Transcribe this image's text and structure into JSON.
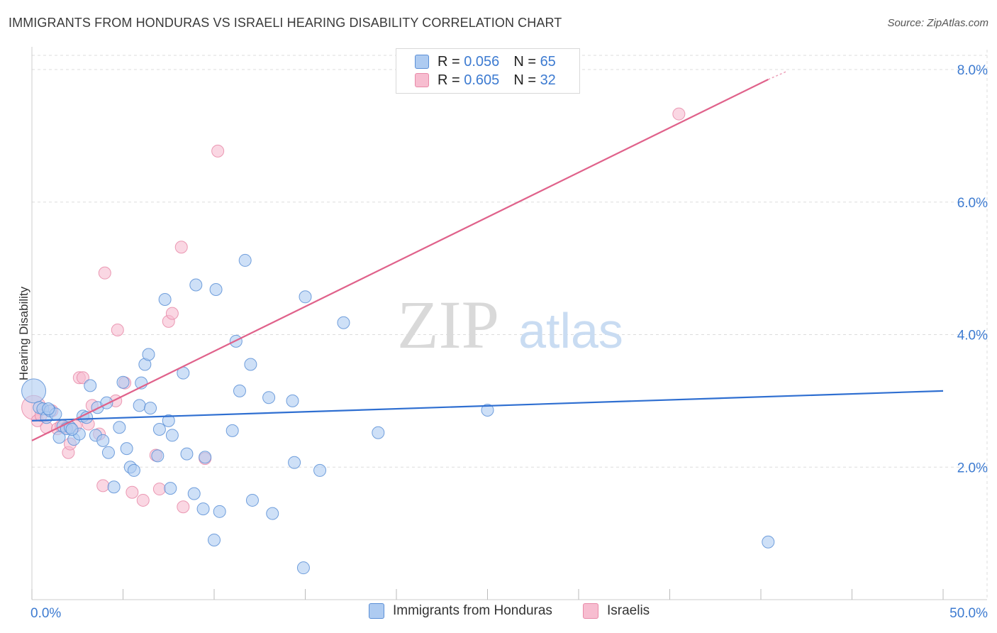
{
  "header": {
    "title": "IMMIGRANTS FROM HONDURAS VS ISRAELI HEARING DISABILITY CORRELATION CHART",
    "source": "Source: ZipAtlas.com"
  },
  "legend": {
    "series": [
      {
        "r_label": "R =",
        "r_value": "0.056",
        "n_label": "N =",
        "n_value": "65"
      },
      {
        "r_label": "R =",
        "r_value": "0.605",
        "n_label": "N =",
        "n_value": "32"
      }
    ]
  },
  "bottom_legend": {
    "items": [
      "Immigrants from Honduras",
      "Israelis"
    ]
  },
  "watermark": {
    "zip": "ZIP",
    "atlas": "atlas"
  },
  "colors": {
    "blue_fill": "#aecbf1",
    "blue_stroke": "#5b8fd6",
    "blue_line": "#2f6fd1",
    "pink_fill": "#f7bdd0",
    "pink_stroke": "#e88aa8",
    "pink_line": "#e0628b",
    "axis_label": "#3d7bd1",
    "grid": "#dddddd"
  },
  "chart_data": {
    "type": "scatter",
    "title": "IMMIGRANTS FROM HONDURAS VS ISRAELI HEARING DISABILITY CORRELATION CHART",
    "xlabel": "",
    "ylabel": "Hearing Disability",
    "xlim": [
      0,
      50
    ],
    "ylim": [
      0,
      8.3
    ],
    "x_tick_labels": [
      "0.0%",
      "50.0%"
    ],
    "y_ticks": [
      2,
      4,
      6,
      8
    ],
    "y_tick_labels": [
      "2.0%",
      "4.0%",
      "6.0%",
      "8.0%"
    ],
    "series": [
      {
        "name": "Immigrants from Honduras",
        "color": "blue",
        "trend": {
          "x": [
            0,
            50
          ],
          "y": [
            2.7,
            3.15
          ]
        },
        "points": [
          {
            "x": 0.1,
            "y": 3.15,
            "big": true
          },
          {
            "x": 0.4,
            "y": 2.9
          },
          {
            "x": 0.6,
            "y": 2.88
          },
          {
            "x": 0.8,
            "y": 2.75
          },
          {
            "x": 1.0,
            "y": 2.85
          },
          {
            "x": 1.3,
            "y": 2.8
          },
          {
            "x": 1.5,
            "y": 2.45
          },
          {
            "x": 1.7,
            "y": 2.62
          },
          {
            "x": 1.9,
            "y": 2.58
          },
          {
            "x": 2.1,
            "y": 2.6
          },
          {
            "x": 2.3,
            "y": 2.42
          },
          {
            "x": 2.6,
            "y": 2.5
          },
          {
            "x": 2.8,
            "y": 2.77
          },
          {
            "x": 3.0,
            "y": 2.75
          },
          {
            "x": 3.2,
            "y": 3.23
          },
          {
            "x": 3.5,
            "y": 2.48
          },
          {
            "x": 3.6,
            "y": 2.9
          },
          {
            "x": 3.9,
            "y": 2.4
          },
          {
            "x": 4.1,
            "y": 2.97
          },
          {
            "x": 4.2,
            "y": 2.22
          },
          {
            "x": 4.5,
            "y": 1.7
          },
          {
            "x": 4.8,
            "y": 2.6
          },
          {
            "x": 5.0,
            "y": 3.28
          },
          {
            "x": 5.2,
            "y": 2.28
          },
          {
            "x": 5.4,
            "y": 2.0
          },
          {
            "x": 5.6,
            "y": 1.95
          },
          {
            "x": 5.9,
            "y": 2.93
          },
          {
            "x": 6.0,
            "y": 3.27
          },
          {
            "x": 6.2,
            "y": 3.55
          },
          {
            "x": 6.4,
            "y": 3.7
          },
          {
            "x": 6.5,
            "y": 2.89
          },
          {
            "x": 6.9,
            "y": 2.17
          },
          {
            "x": 7.0,
            "y": 2.57
          },
          {
            "x": 7.3,
            "y": 4.53
          },
          {
            "x": 7.5,
            "y": 2.7
          },
          {
            "x": 7.7,
            "y": 2.48
          },
          {
            "x": 7.6,
            "y": 1.68
          },
          {
            "x": 8.3,
            "y": 3.42
          },
          {
            "x": 8.5,
            "y": 2.2
          },
          {
            "x": 8.9,
            "y": 1.6
          },
          {
            "x": 9.0,
            "y": 4.75
          },
          {
            "x": 9.4,
            "y": 1.37
          },
          {
            "x": 9.5,
            "y": 2.15
          },
          {
            "x": 10.0,
            "y": 0.9
          },
          {
            "x": 10.1,
            "y": 4.68
          },
          {
            "x": 10.3,
            "y": 1.33
          },
          {
            "x": 11.0,
            "y": 2.55
          },
          {
            "x": 11.2,
            "y": 3.9
          },
          {
            "x": 11.4,
            "y": 3.15
          },
          {
            "x": 11.7,
            "y": 5.12
          },
          {
            "x": 12.0,
            "y": 3.55
          },
          {
            "x": 12.1,
            "y": 1.5
          },
          {
            "x": 13.0,
            "y": 3.05
          },
          {
            "x": 13.2,
            "y": 1.3
          },
          {
            "x": 14.3,
            "y": 3.0
          },
          {
            "x": 14.4,
            "y": 2.07
          },
          {
            "x": 14.9,
            "y": 0.48
          },
          {
            "x": 15.0,
            "y": 4.57
          },
          {
            "x": 15.8,
            "y": 1.95
          },
          {
            "x": 17.1,
            "y": 4.18
          },
          {
            "x": 19.0,
            "y": 2.52
          },
          {
            "x": 25.0,
            "y": 2.86
          },
          {
            "x": 40.4,
            "y": 0.87
          },
          {
            "x": 0.9,
            "y": 2.88
          },
          {
            "x": 2.2,
            "y": 2.57
          }
        ]
      },
      {
        "name": "Israelis",
        "color": "pink",
        "trend": {
          "x": [
            0,
            40.4
          ],
          "y": [
            2.4,
            7.85
          ]
        },
        "points": [
          {
            "x": 0.1,
            "y": 2.9,
            "big": true
          },
          {
            "x": 0.3,
            "y": 2.7
          },
          {
            "x": 0.5,
            "y": 2.78
          },
          {
            "x": 0.8,
            "y": 2.6
          },
          {
            "x": 1.1,
            "y": 2.85
          },
          {
            "x": 1.4,
            "y": 2.58
          },
          {
            "x": 1.6,
            "y": 2.62
          },
          {
            "x": 1.9,
            "y": 2.6
          },
          {
            "x": 2.0,
            "y": 2.22
          },
          {
            "x": 2.1,
            "y": 2.35
          },
          {
            "x": 2.4,
            "y": 2.62
          },
          {
            "x": 2.6,
            "y": 3.35
          },
          {
            "x": 2.8,
            "y": 3.35
          },
          {
            "x": 3.1,
            "y": 2.65
          },
          {
            "x": 3.3,
            "y": 2.93
          },
          {
            "x": 3.7,
            "y": 2.5
          },
          {
            "x": 3.9,
            "y": 1.72
          },
          {
            "x": 4.0,
            "y": 4.93
          },
          {
            "x": 4.6,
            "y": 3.0
          },
          {
            "x": 4.7,
            "y": 4.07
          },
          {
            "x": 5.1,
            "y": 3.27
          },
          {
            "x": 5.5,
            "y": 1.62
          },
          {
            "x": 6.1,
            "y": 1.5
          },
          {
            "x": 6.8,
            "y": 2.18
          },
          {
            "x": 7.0,
            "y": 1.67
          },
          {
            "x": 7.5,
            "y": 4.2
          },
          {
            "x": 7.7,
            "y": 4.32
          },
          {
            "x": 8.2,
            "y": 5.32
          },
          {
            "x": 8.3,
            "y": 1.4
          },
          {
            "x": 9.5,
            "y": 2.13
          },
          {
            "x": 10.2,
            "y": 6.77
          },
          {
            "x": 35.5,
            "y": 7.33
          }
        ]
      }
    ]
  }
}
